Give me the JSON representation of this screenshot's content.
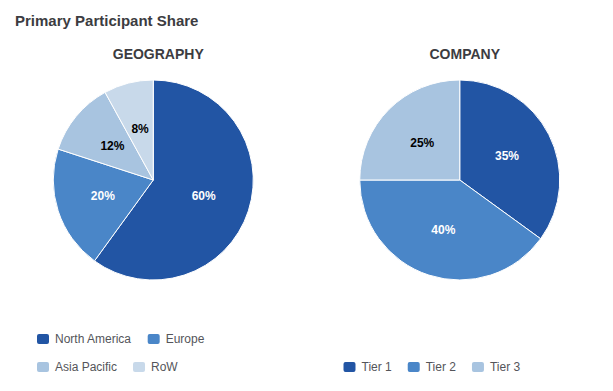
{
  "title": "Primary Participant Share",
  "chart_data": [
    {
      "type": "pie",
      "title": "GEOGRAPHY",
      "categories": [
        "North America",
        "Europe",
        "Asia Pacific",
        "RoW"
      ],
      "values": [
        60,
        20,
        12,
        8
      ],
      "value_labels": [
        "60%",
        "20%",
        "12%",
        "8%"
      ],
      "colors": [
        "#2255a4",
        "#4a86c8",
        "#a8c4e0",
        "#c8d9ea"
      ],
      "data_labels": true,
      "legend": "bottom"
    },
    {
      "type": "pie",
      "title": "COMPANY",
      "categories": [
        "Tier 1",
        "Tier 2",
        "Tier 3"
      ],
      "values": [
        35,
        40,
        25
      ],
      "value_labels": [
        "35%",
        "40%",
        "25%"
      ],
      "colors": [
        "#2255a4",
        "#4a86c8",
        "#a8c4e0"
      ],
      "data_labels": true,
      "legend": "bottom"
    }
  ]
}
